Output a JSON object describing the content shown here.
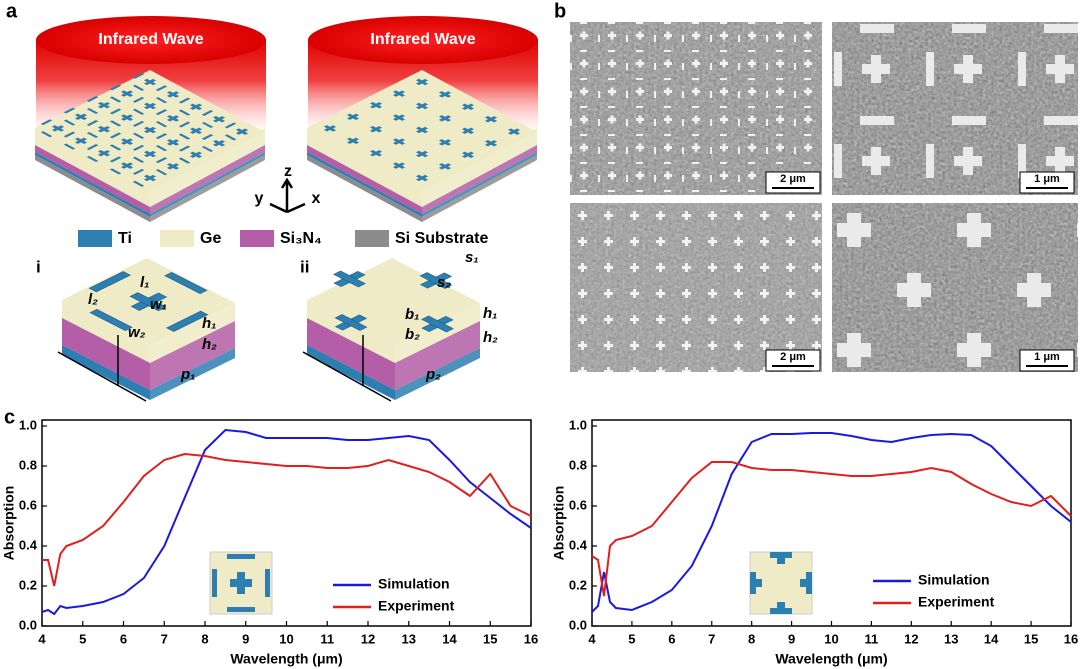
{
  "panel_labels": [
    "a",
    "b",
    "c"
  ],
  "schematic": {
    "wave_labels": [
      "Infrared Wave",
      "Infrared Wave"
    ],
    "axes": [
      "z",
      "y",
      "x"
    ],
    "materials": [
      {
        "name": "Ti",
        "color": "#2e7fb1"
      },
      {
        "name": "Ge",
        "color": "#efebc6"
      },
      {
        "name": "Si₃N₄",
        "color": "#b35ea6"
      },
      {
        "name": "Si Substrate",
        "color": "#8c8c8c"
      }
    ],
    "cells": [
      {
        "label": "i",
        "dims": [
          "l₁",
          "w₁",
          "l₂",
          "w₂",
          "h₁",
          "h₂",
          "p₁"
        ]
      },
      {
        "label": "ii",
        "dims": [
          "s₁",
          "s₂",
          "b₁",
          "b₂",
          "h₁",
          "h₂",
          "p₂"
        ]
      }
    ]
  },
  "sem": {
    "scale_bars": [
      "2 μm",
      "1 μm",
      "2 μm",
      "1 μm"
    ]
  },
  "chart_data": [
    {
      "type": "line",
      "xlabel": "Wavelength (μm)",
      "ylabel": "Absorption",
      "x": [
        4,
        4.15,
        4.3,
        4.45,
        4.6,
        5,
        5.5,
        6,
        6.5,
        7,
        7.5,
        8,
        8.5,
        9,
        9.5,
        10,
        10.5,
        11,
        11.5,
        12,
        12.5,
        13,
        13.5,
        14,
        14.5,
        15,
        15.5,
        16
      ],
      "series": [
        {
          "name": "Simulation",
          "color": "#1a1adf",
          "values": [
            0.07,
            0.08,
            0.06,
            0.1,
            0.09,
            0.1,
            0.12,
            0.16,
            0.24,
            0.4,
            0.64,
            0.88,
            0.98,
            0.97,
            0.94,
            0.94,
            0.94,
            0.94,
            0.93,
            0.93,
            0.94,
            0.95,
            0.93,
            0.83,
            0.72,
            0.64,
            0.56,
            0.49
          ]
        },
        {
          "name": "Experiment",
          "color": "#e0201e",
          "values": [
            0.33,
            0.33,
            0.2,
            0.36,
            0.4,
            0.43,
            0.5,
            0.62,
            0.75,
            0.83,
            0.86,
            0.85,
            0.83,
            0.82,
            0.81,
            0.8,
            0.8,
            0.79,
            0.79,
            0.8,
            0.83,
            0.8,
            0.77,
            0.72,
            0.65,
            0.76,
            0.6,
            0.55
          ]
        }
      ],
      "xlim": [
        4,
        16
      ],
      "ylim": [
        0,
        1.03
      ],
      "xticks": [
        4,
        5,
        6,
        7,
        8,
        9,
        10,
        11,
        12,
        13,
        14,
        15,
        16
      ],
      "yticks": [
        {
          "value": 0,
          "label": "0.0"
        },
        0.2,
        0.4,
        0.6,
        0.8,
        {
          "value": 1,
          "label": "1.0"
        }
      ]
    },
    {
      "type": "line",
      "xlabel": "Wavelength (μm)",
      "ylabel": "Absorption",
      "x": [
        4,
        4.15,
        4.3,
        4.45,
        4.6,
        5,
        5.5,
        6,
        6.5,
        7,
        7.5,
        8,
        8.5,
        9,
        9.5,
        10,
        10.5,
        11,
        11.5,
        12,
        12.5,
        13,
        13.5,
        14,
        14.5,
        15,
        15.5,
        16
      ],
      "series": [
        {
          "name": "Simulation",
          "color": "#1a1adf",
          "values": [
            0.07,
            0.1,
            0.27,
            0.12,
            0.09,
            0.08,
            0.12,
            0.18,
            0.3,
            0.5,
            0.76,
            0.92,
            0.96,
            0.96,
            0.965,
            0.965,
            0.95,
            0.93,
            0.92,
            0.94,
            0.955,
            0.96,
            0.955,
            0.9,
            0.8,
            0.7,
            0.6,
            0.52
          ]
        },
        {
          "name": "Experiment",
          "color": "#e0201e",
          "values": [
            0.35,
            0.33,
            0.15,
            0.4,
            0.43,
            0.45,
            0.5,
            0.62,
            0.74,
            0.82,
            0.82,
            0.79,
            0.78,
            0.78,
            0.77,
            0.76,
            0.75,
            0.75,
            0.76,
            0.77,
            0.79,
            0.77,
            0.71,
            0.66,
            0.62,
            0.6,
            0.65,
            0.55
          ]
        }
      ],
      "xlim": [
        4,
        16
      ],
      "ylim": [
        0,
        1.03
      ],
      "xticks": [
        4,
        5,
        6,
        7,
        8,
        9,
        10,
        11,
        12,
        13,
        14,
        15,
        16
      ],
      "yticks": [
        {
          "value": 0,
          "label": "0.0"
        },
        0.2,
        0.4,
        0.6,
        0.8,
        {
          "value": 1,
          "label": "1.0"
        }
      ]
    }
  ]
}
